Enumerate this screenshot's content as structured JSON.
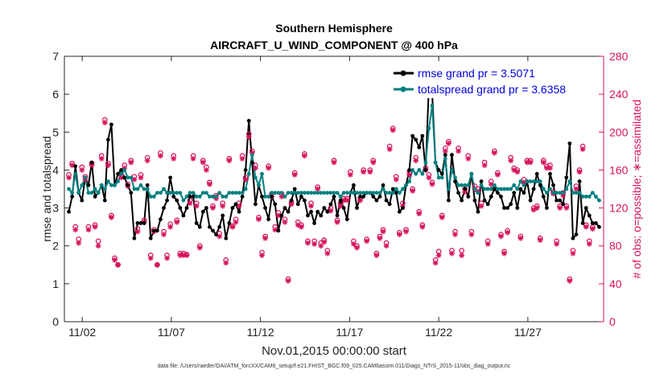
{
  "chart_data": {
    "type": "line",
    "title": "Southern Hemisphere",
    "subtitle": "AIRCRAFT_U_WIND_COMPONENT @ 400 hPa",
    "xlabel": "Nov.01,2015 00:00:00 start",
    "ylabel": "rmse and totalspread",
    "y2label": "# of obs: o=possible; ∗=assimilated",
    "xlim": [
      0,
      30.25
    ],
    "ylim": [
      0,
      7
    ],
    "y2lim": [
      0,
      280
    ],
    "x_ticks": [
      1,
      6,
      11,
      16,
      21,
      26
    ],
    "x_tick_labels": [
      "11/02",
      "11/07",
      "11/12",
      "11/17",
      "11/22",
      "11/27"
    ],
    "y_ticks": [
      0,
      1,
      2,
      3,
      4,
      5,
      6,
      7
    ],
    "y2_ticks": [
      0,
      40,
      80,
      120,
      160,
      200,
      240,
      280
    ],
    "legend": [
      {
        "label": "rmse grand pr = 3.5071",
        "color": "#000000"
      },
      {
        "label": "totalspread grand pr = 3.6358",
        "color": "#00807f"
      }
    ],
    "rmse_color": "#000000",
    "spread_color": "#00807f",
    "obs_color": "#d6135d",
    "series": [
      {
        "name": "rmse",
        "values": [
          2.9,
          3.3,
          4.1,
          3.4,
          3.2,
          3.8,
          3.6,
          4.2,
          3.3,
          3.4,
          3.6,
          3.2,
          4.8,
          5.2,
          3.6,
          3.9,
          4.0,
          3.8,
          3.6,
          3.4,
          2.2,
          2.6,
          2.6,
          2.6,
          3.6,
          2.2,
          2.4,
          2.4,
          2.7,
          3.0,
          3.2,
          3.8,
          3.3,
          3.2,
          3.0,
          2.8,
          3.0,
          3.3,
          3.3,
          2.6,
          2.5,
          2.9,
          3.0,
          2.5,
          2.4,
          2.3,
          2.5,
          2.8,
          2.2,
          2.6,
          3.0,
          3.1,
          2.9,
          3.3,
          4.0,
          5.3,
          4.2,
          3.1,
          3.6,
          3.3,
          3.0,
          2.7,
          3.3,
          3.1,
          2.4,
          2.8,
          3.0,
          2.9,
          3.2,
          3.5,
          3.1,
          3.3,
          3.2,
          2.8,
          2.9,
          2.6,
          2.9,
          2.8,
          3.0,
          2.9,
          3.1,
          3.3,
          2.8,
          3.2,
          3.0,
          2.7,
          3.4,
          3.6,
          3.0,
          3.3,
          3.3,
          3.4,
          3.4,
          3.3,
          3.2,
          3.3,
          3.6,
          3.2,
          3.1,
          3.5,
          3.4,
          2.9,
          3.0,
          3.6,
          4.0,
          4.9,
          4.8,
          4.6,
          4.9,
          4.0,
          6.3,
          6.0,
          4.2,
          4.0,
          3.9,
          4.4,
          3.2,
          4.4,
          3.7,
          3.4,
          3.2,
          3.5,
          3.3,
          3.9,
          3.2,
          2.9,
          3.7,
          3.2,
          3.1,
          3.3,
          3.5,
          3.4,
          3.3,
          3.0,
          3.0,
          3.1,
          3.4,
          3.0,
          3.5,
          3.4,
          3.7,
          3.2,
          3.5,
          3.9,
          3.6,
          3.3,
          3.0,
          3.9,
          3.6,
          3.2,
          3.2,
          3.1,
          3.8,
          4.7,
          2.2,
          2.3,
          3.7,
          2.6,
          3.0,
          2.8,
          2.6,
          2.6,
          2.5
        ]
      },
      {
        "name": "totalspread",
        "values": [
          3.5,
          3.4,
          3.9,
          3.4,
          3.6,
          3.8,
          3.4,
          3.4,
          3.5,
          3.4,
          3.6,
          3.5,
          3.7,
          3.6,
          3.6,
          3.7,
          3.9,
          4.0,
          3.8,
          3.8,
          3.5,
          3.5,
          3.6,
          3.5,
          3.5,
          3.3,
          3.3,
          3.4,
          3.4,
          3.5,
          3.4,
          3.4,
          3.4,
          3.4,
          3.4,
          3.2,
          3.3,
          3.4,
          3.4,
          3.3,
          3.3,
          3.4,
          3.4,
          3.3,
          3.3,
          3.3,
          3.4,
          3.3,
          3.3,
          3.4,
          3.4,
          3.4,
          3.4,
          3.4,
          3.5,
          3.9,
          4.4,
          3.8,
          3.6,
          3.9,
          3.3,
          3.3,
          3.4,
          3.4,
          3.4,
          3.4,
          3.3,
          3.4,
          3.4,
          3.4,
          3.4,
          3.4,
          3.4,
          3.4,
          3.4,
          3.4,
          3.4,
          3.4,
          3.4,
          3.4,
          3.4,
          3.4,
          3.4,
          3.3,
          3.4,
          3.4,
          3.4,
          3.4,
          3.4,
          3.4,
          3.4,
          3.4,
          3.4,
          3.4,
          3.4,
          3.4,
          3.5,
          3.4,
          3.4,
          3.4,
          3.5,
          3.4,
          3.5,
          3.6,
          3.7,
          4.0,
          3.9,
          4.0,
          3.9,
          4.2,
          5.1,
          5.7,
          4.2,
          3.8,
          3.8,
          4.3,
          3.5,
          4.0,
          3.8,
          3.6,
          3.6,
          3.6,
          3.6,
          3.9,
          3.5,
          3.4,
          3.6,
          3.5,
          3.5,
          3.5,
          3.6,
          3.5,
          3.5,
          3.5,
          3.5,
          3.5,
          3.6,
          3.5,
          3.7,
          3.6,
          3.7,
          3.7,
          3.7,
          3.7,
          3.7,
          3.5,
          3.4,
          3.5,
          3.4,
          3.4,
          3.4,
          3.4,
          3.5,
          3.7,
          3.4,
          3.4,
          3.4,
          3.3,
          3.3,
          3.3,
          3.4,
          3.3,
          3.2
        ]
      },
      {
        "name": "obs_possible",
        "values": [
          155,
          167,
          100,
          87,
          163,
          153,
          100,
          167,
          102,
          85,
          175,
          213,
          167,
          112,
          67,
          60,
          155,
          165,
          145,
          170,
          153,
          98,
          155,
          107,
          173,
          70,
          97,
          60,
          178,
          95,
          70,
          103,
          175,
          107,
          72,
          72,
          71,
          128,
          175,
          125,
          80,
          170,
          163,
          147,
          122,
          133,
          93,
          125,
          65,
          172,
          101,
          108,
          125,
          175,
          152,
          198,
          180,
          165,
          110,
          73,
          90,
          164,
          135,
          100,
          115,
          135,
          108,
          45,
          126,
          157,
          105,
          102,
          177,
          85,
          125,
          85,
          142,
          83,
          86,
          75,
          120,
          170,
          107,
          125,
          130,
          130,
          158,
          85,
          80,
          130,
          160,
          87,
          160,
          170,
          72,
          90,
          97,
          83,
          185,
          204,
          153,
          94,
          125,
          97,
          158,
          140,
          173,
          116,
          102,
          162,
          155,
          147,
          65,
          74,
          112,
          183,
          190,
          75,
          95,
          183,
          75,
          140,
          175,
          95,
          143,
          140,
          125,
          168,
          85,
          148,
          180,
          157,
          92,
          74,
          96,
          173,
          162,
          160,
          90,
          150,
          170,
          170,
          120,
          122,
          88,
          170,
          164,
          165,
          137,
          85,
          122,
          136,
          122,
          45,
          75,
          143,
          160,
          185,
          102,
          85,
          100
        ]
      },
      {
        "name": "obs_assimilated",
        "values": [
          152,
          165,
          97,
          83,
          160,
          150,
          97,
          165,
          100,
          80,
          172,
          210,
          165,
          110,
          65,
          60,
          152,
          162,
          143,
          168,
          150,
          95,
          152,
          105,
          170,
          67,
          95,
          60,
          175,
          92,
          67,
          100,
          172,
          105,
          70,
          70,
          70,
          125,
          172,
          122,
          78,
          168,
          160,
          145,
          120,
          130,
          90,
          122,
          62,
          170,
          100,
          105,
          122,
          172,
          150,
          195,
          178,
          162,
          108,
          70,
          88,
          162,
          132,
          97,
          112,
          132,
          105,
          43,
          124,
          155,
          102,
          100,
          175,
          83,
          122,
          82,
          140,
          80,
          84,
          72,
          117,
          168,
          105,
          122,
          128,
          128,
          155,
          82,
          78,
          128,
          158,
          85,
          158,
          168,
          70,
          88,
          95,
          80,
          182,
          202,
          150,
          92,
          122,
          95,
          155,
          138,
          170,
          114,
          100,
          160,
          152,
          145,
          62,
          70,
          110,
          180,
          188,
          72,
          92,
          180,
          70,
          137,
          172,
          92,
          140,
          137,
          122,
          165,
          82,
          145,
          178,
          155,
          90,
          72,
          94,
          170,
          160,
          158,
          88,
          147,
          168,
          168,
          118,
          120,
          86,
          168,
          162,
          162,
          135,
          82,
          120,
          133,
          120,
          43,
          72,
          140,
          158,
          182,
          100,
          82,
          98
        ]
      }
    ]
  },
  "footer": {
    "data_file": "data file: /Users/raeder/DAI/ATM_forcXX/CAM6_setup/f.e21.FHIST_BGC.f09_025.CAM6assim.011/Diags_NTrS_2015-11/obs_diag_output.nc"
  }
}
